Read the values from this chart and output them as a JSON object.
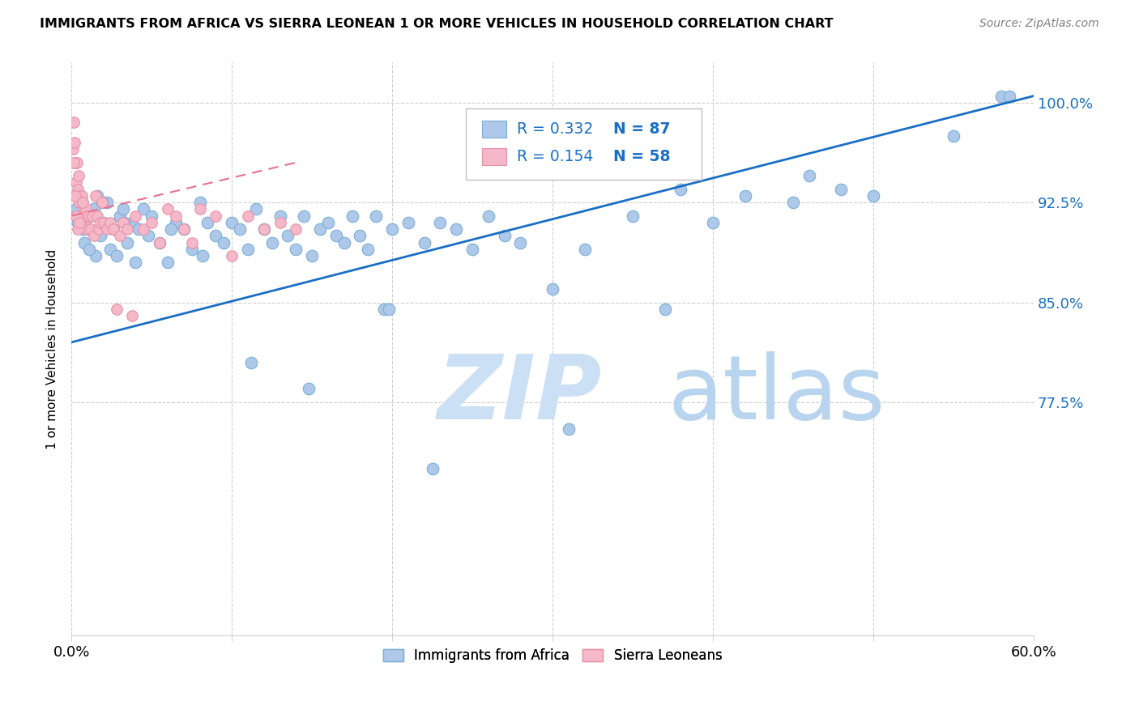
{
  "title": "IMMIGRANTS FROM AFRICA VS SIERRA LEONEAN 1 OR MORE VEHICLES IN HOUSEHOLD CORRELATION CHART",
  "source": "Source: ZipAtlas.com",
  "ylabel": "1 or more Vehicles in Household",
  "xlim": [
    0.0,
    60.0
  ],
  "ylim": [
    60.0,
    103.0
  ],
  "yticks": [
    77.5,
    85.0,
    92.5,
    100.0
  ],
  "ytick_labels": [
    "77.5%",
    "85.0%",
    "92.5%",
    "100.0%"
  ],
  "xticks": [
    0.0,
    10.0,
    20.0,
    30.0,
    40.0,
    50.0,
    60.0
  ],
  "legend_R_blue": "R = 0.332",
  "legend_N_blue": "N = 87",
  "legend_R_pink": "R = 0.154",
  "legend_N_pink": "N = 58",
  "blue_color": "#adc8e8",
  "blue_edge": "#7aaed6",
  "pink_color": "#f4b8c8",
  "pink_edge": "#e891a8",
  "regression_blue_color": "#1a6fc4",
  "regression_pink_color": "#e87090",
  "watermark_zip": "ZIP",
  "watermark_atlas": "atlas",
  "watermark_color": "#cce0f5",
  "blue_scatter_x": [
    0.4,
    0.6,
    0.8,
    1.0,
    1.2,
    1.4,
    1.5,
    1.6,
    1.8,
    2.0,
    2.2,
    2.4,
    2.6,
    2.8,
    3.0,
    3.2,
    3.5,
    3.8,
    4.0,
    4.2,
    4.5,
    4.8,
    5.0,
    5.5,
    6.0,
    6.5,
    7.0,
    7.5,
    8.0,
    8.5,
    9.0,
    9.5,
    10.0,
    10.5,
    11.0,
    11.5,
    12.0,
    12.5,
    13.0,
    13.5,
    14.0,
    14.5,
    15.0,
    15.5,
    16.0,
    16.5,
    17.0,
    17.5,
    18.0,
    18.5,
    19.0,
    19.5,
    20.0,
    21.0,
    22.0,
    23.0,
    24.0,
    25.0,
    26.0,
    27.0,
    28.0,
    30.0,
    32.0,
    35.0,
    37.0,
    40.0,
    42.0,
    45.0,
    48.0,
    50.0,
    55.0,
    58.0,
    0.3,
    0.7,
    1.1,
    1.9,
    3.3,
    6.2,
    8.2,
    11.2,
    14.8,
    19.8,
    22.5,
    31.0,
    38.0,
    46.0,
    58.5
  ],
  "blue_scatter_y": [
    91.0,
    92.0,
    89.5,
    90.5,
    91.5,
    92.0,
    88.5,
    93.0,
    90.0,
    91.0,
    92.5,
    89.0,
    90.5,
    88.5,
    91.5,
    92.0,
    89.5,
    91.0,
    88.0,
    90.5,
    92.0,
    90.0,
    91.5,
    89.5,
    88.0,
    91.0,
    90.5,
    89.0,
    92.5,
    91.0,
    90.0,
    89.5,
    91.0,
    90.5,
    89.0,
    92.0,
    90.5,
    89.5,
    91.5,
    90.0,
    89.0,
    91.5,
    88.5,
    90.5,
    91.0,
    90.0,
    89.5,
    91.5,
    90.0,
    89.0,
    91.5,
    84.5,
    90.5,
    91.0,
    89.5,
    91.0,
    90.5,
    89.0,
    91.5,
    90.0,
    89.5,
    86.0,
    89.0,
    91.5,
    84.5,
    91.0,
    93.0,
    92.5,
    93.5,
    93.0,
    97.5,
    100.5,
    92.0,
    90.5,
    89.0,
    92.5,
    91.0,
    90.5,
    88.5,
    80.5,
    78.5,
    84.5,
    72.5,
    75.5,
    93.5,
    94.5,
    100.5
  ],
  "pink_scatter_x": [
    0.1,
    0.15,
    0.2,
    0.25,
    0.3,
    0.35,
    0.4,
    0.45,
    0.5,
    0.55,
    0.6,
    0.65,
    0.7,
    0.75,
    0.8,
    0.85,
    0.9,
    0.95,
    1.0,
    1.1,
    1.2,
    1.3,
    1.4,
    1.5,
    1.6,
    1.7,
    1.8,
    1.9,
    2.0,
    2.2,
    2.4,
    2.6,
    2.8,
    3.0,
    3.2,
    3.5,
    3.8,
    4.0,
    4.5,
    5.0,
    5.5,
    6.0,
    6.5,
    7.0,
    7.5,
    8.0,
    9.0,
    10.0,
    11.0,
    12.0,
    13.0,
    14.0,
    0.12,
    0.22,
    0.32,
    0.42,
    0.52,
    0.72
  ],
  "pink_scatter_y": [
    96.5,
    98.5,
    97.0,
    95.5,
    94.0,
    95.5,
    93.5,
    94.5,
    92.5,
    93.0,
    91.5,
    93.0,
    92.5,
    91.5,
    92.0,
    91.0,
    92.0,
    91.5,
    90.5,
    91.5,
    90.5,
    91.5,
    90.0,
    93.0,
    91.5,
    90.5,
    91.0,
    92.5,
    91.0,
    90.5,
    91.0,
    90.5,
    84.5,
    90.0,
    91.0,
    90.5,
    84.0,
    91.5,
    90.5,
    91.0,
    89.5,
    92.0,
    91.5,
    90.5,
    89.5,
    92.0,
    91.5,
    88.5,
    91.5,
    90.5,
    91.0,
    90.5,
    95.5,
    93.0,
    91.5,
    90.5,
    91.0,
    92.5
  ]
}
